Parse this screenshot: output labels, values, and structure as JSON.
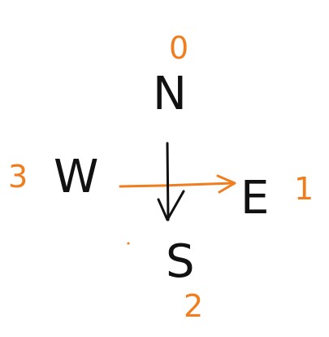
{
  "colors": {
    "background": "#ffffff",
    "letters": "#111111",
    "indices": "#f07d1e",
    "arrow_south": "#111111",
    "arrow_east": "#f07d1e"
  },
  "directions": {
    "north": {
      "letter": "N",
      "index": "0"
    },
    "east": {
      "letter": "E",
      "index": "1"
    },
    "south": {
      "letter": "S",
      "index": "2"
    },
    "west": {
      "letter": "W",
      "index": "3"
    }
  },
  "arrows": [
    {
      "name": "down-arrow",
      "direction": "south",
      "color": "#111111"
    },
    {
      "name": "right-arrow",
      "direction": "east",
      "color": "#f07d1e"
    }
  ]
}
